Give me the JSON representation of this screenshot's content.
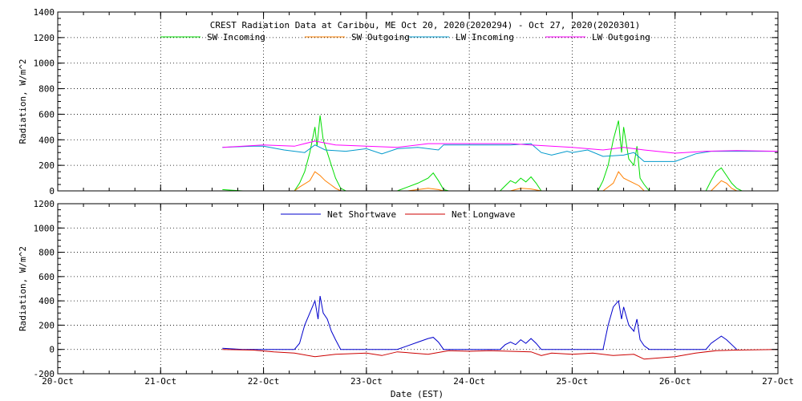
{
  "title": "CREST Radiation Data at Caribou, ME   Oct 20, 2020(2020294) - Oct 27, 2020(2020301)",
  "chart_data": [
    {
      "type": "line",
      "panel": "top",
      "ylabel": "Radiation, W/m^2",
      "ylim": [
        0,
        1400
      ],
      "yticks": [
        0,
        200,
        400,
        600,
        800,
        1000,
        1200,
        1400
      ],
      "xlim": [
        0,
        7
      ],
      "x_tick_labels": [
        "20-Oct",
        "21-Oct",
        "22-Oct",
        "23-Oct",
        "24-Oct",
        "25-Oct",
        "26-Oct",
        "27-Oct"
      ],
      "grid": true,
      "legend_position": "top",
      "series": [
        {
          "name": "SW Incoming",
          "color": "#00dd00",
          "points": [
            [
              1.6,
              10
            ],
            [
              1.7,
              5
            ],
            [
              1.8,
              0
            ],
            [
              2.3,
              0
            ],
            [
              2.35,
              60
            ],
            [
              2.4,
              150
            ],
            [
              2.45,
              300
            ],
            [
              2.5,
              500
            ],
            [
              2.52,
              350
            ],
            [
              2.55,
              590
            ],
            [
              2.58,
              400
            ],
            [
              2.62,
              300
            ],
            [
              2.66,
              200
            ],
            [
              2.7,
              100
            ],
            [
              2.75,
              20
            ],
            [
              2.8,
              0
            ],
            [
              3.3,
              0
            ],
            [
              3.4,
              30
            ],
            [
              3.5,
              60
            ],
            [
              3.6,
              100
            ],
            [
              3.65,
              140
            ],
            [
              3.7,
              80
            ],
            [
              3.75,
              10
            ],
            [
              3.8,
              0
            ],
            [
              4.3,
              0
            ],
            [
              4.35,
              40
            ],
            [
              4.4,
              80
            ],
            [
              4.45,
              60
            ],
            [
              4.5,
              100
            ],
            [
              4.55,
              70
            ],
            [
              4.6,
              110
            ],
            [
              4.65,
              60
            ],
            [
              4.7,
              0
            ],
            [
              5.25,
              0
            ],
            [
              5.3,
              80
            ],
            [
              5.35,
              200
            ],
            [
              5.4,
              400
            ],
            [
              5.45,
              550
            ],
            [
              5.48,
              300
            ],
            [
              5.5,
              500
            ],
            [
              5.55,
              250
            ],
            [
              5.6,
              200
            ],
            [
              5.63,
              350
            ],
            [
              5.66,
              100
            ],
            [
              5.7,
              50
            ],
            [
              5.75,
              0
            ],
            [
              6.3,
              0
            ],
            [
              6.35,
              80
            ],
            [
              6.4,
              150
            ],
            [
              6.45,
              180
            ],
            [
              6.5,
              120
            ],
            [
              6.55,
              60
            ],
            [
              6.6,
              20
            ],
            [
              6.65,
              0
            ]
          ]
        },
        {
          "name": "SW Outgoing",
          "color": "#ff8000",
          "points": [
            [
              2.3,
              0
            ],
            [
              2.35,
              30
            ],
            [
              2.45,
              80
            ],
            [
              2.5,
              150
            ],
            [
              2.55,
              120
            ],
            [
              2.6,
              80
            ],
            [
              2.65,
              50
            ],
            [
              2.7,
              20
            ],
            [
              2.75,
              0
            ],
            [
              3.4,
              0
            ],
            [
              3.5,
              10
            ],
            [
              3.6,
              20
            ],
            [
              3.7,
              10
            ],
            [
              3.75,
              0
            ],
            [
              4.4,
              0
            ],
            [
              4.5,
              20
            ],
            [
              4.6,
              15
            ],
            [
              4.7,
              0
            ],
            [
              5.3,
              0
            ],
            [
              5.4,
              60
            ],
            [
              5.45,
              150
            ],
            [
              5.5,
              100
            ],
            [
              5.55,
              80
            ],
            [
              5.6,
              60
            ],
            [
              5.65,
              40
            ],
            [
              5.7,
              0
            ],
            [
              6.35,
              0
            ],
            [
              6.45,
              80
            ],
            [
              6.5,
              60
            ],
            [
              6.55,
              20
            ],
            [
              6.6,
              0
            ]
          ]
        },
        {
          "name": "LW Incoming",
          "color": "#0099cc",
          "points": [
            [
              1.6,
              340
            ],
            [
              1.9,
              350
            ],
            [
              2.0,
              350
            ],
            [
              2.2,
              320
            ],
            [
              2.4,
              300
            ],
            [
              2.5,
              360
            ],
            [
              2.6,
              320
            ],
            [
              2.8,
              310
            ],
            [
              3.0,
              330
            ],
            [
              3.15,
              290
            ],
            [
              3.3,
              330
            ],
            [
              3.5,
              340
            ],
            [
              3.7,
              320
            ],
            [
              3.75,
              360
            ],
            [
              4.0,
              360
            ],
            [
              4.2,
              360
            ],
            [
              4.4,
              360
            ],
            [
              4.6,
              370
            ],
            [
              4.7,
              300
            ],
            [
              4.8,
              280
            ],
            [
              4.95,
              310
            ],
            [
              5.0,
              300
            ],
            [
              5.15,
              320
            ],
            [
              5.3,
              270
            ],
            [
              5.5,
              280
            ],
            [
              5.6,
              300
            ],
            [
              5.7,
              230
            ],
            [
              6.0,
              230
            ],
            [
              6.2,
              290
            ],
            [
              6.35,
              310
            ],
            [
              6.6,
              310
            ],
            [
              7.0,
              310
            ]
          ]
        },
        {
          "name": "LW Outgoing",
          "color": "#ff00ff",
          "points": [
            [
              1.6,
              340
            ],
            [
              2.0,
              360
            ],
            [
              2.3,
              350
            ],
            [
              2.5,
              390
            ],
            [
              2.7,
              360
            ],
            [
              3.0,
              350
            ],
            [
              3.3,
              340
            ],
            [
              3.6,
              370
            ],
            [
              4.0,
              370
            ],
            [
              4.4,
              370
            ],
            [
              4.6,
              360
            ],
            [
              5.0,
              340
            ],
            [
              5.3,
              320
            ],
            [
              5.5,
              340
            ],
            [
              5.7,
              320
            ],
            [
              6.0,
              295
            ],
            [
              6.3,
              310
            ],
            [
              6.6,
              315
            ],
            [
              7.0,
              310
            ]
          ]
        }
      ]
    },
    {
      "type": "line",
      "panel": "bottom",
      "ylabel": "Radiation, W/m^2",
      "xlabel": "Date (EST)",
      "ylim": [
        -200,
        1200
      ],
      "yticks": [
        -200,
        0,
        200,
        400,
        600,
        800,
        1000,
        1200
      ],
      "xlim": [
        0,
        7
      ],
      "x_tick_labels": [
        "20-Oct",
        "21-Oct",
        "22-Oct",
        "23-Oct",
        "24-Oct",
        "25-Oct",
        "26-Oct",
        "27-Oct"
      ],
      "grid": true,
      "legend_position": "top",
      "series": [
        {
          "name": "Net Shortwave",
          "color": "#0000cc",
          "points": [
            [
              1.6,
              10
            ],
            [
              1.8,
              0
            ],
            [
              2.3,
              0
            ],
            [
              2.35,
              50
            ],
            [
              2.4,
              200
            ],
            [
              2.45,
              300
            ],
            [
              2.5,
              400
            ],
            [
              2.53,
              250
            ],
            [
              2.55,
              440
            ],
            [
              2.58,
              300
            ],
            [
              2.62,
              250
            ],
            [
              2.66,
              150
            ],
            [
              2.7,
              80
            ],
            [
              2.75,
              0
            ],
            [
              3.3,
              0
            ],
            [
              3.4,
              30
            ],
            [
              3.5,
              60
            ],
            [
              3.6,
              90
            ],
            [
              3.65,
              100
            ],
            [
              3.7,
              60
            ],
            [
              3.75,
              0
            ],
            [
              4.3,
              0
            ],
            [
              4.35,
              40
            ],
            [
              4.4,
              60
            ],
            [
              4.45,
              40
            ],
            [
              4.5,
              80
            ],
            [
              4.55,
              50
            ],
            [
              4.6,
              90
            ],
            [
              4.65,
              50
            ],
            [
              4.7,
              0
            ],
            [
              5.3,
              0
            ],
            [
              5.35,
              200
            ],
            [
              5.4,
              350
            ],
            [
              5.45,
              400
            ],
            [
              5.48,
              250
            ],
            [
              5.5,
              350
            ],
            [
              5.55,
              200
            ],
            [
              5.6,
              150
            ],
            [
              5.63,
              250
            ],
            [
              5.66,
              80
            ],
            [
              5.7,
              30
            ],
            [
              5.75,
              0
            ],
            [
              6.3,
              0
            ],
            [
              6.35,
              50
            ],
            [
              6.4,
              80
            ],
            [
              6.45,
              110
            ],
            [
              6.5,
              80
            ],
            [
              6.55,
              40
            ],
            [
              6.6,
              0
            ]
          ]
        },
        {
          "name": "Net Longwave",
          "color": "#cc0000",
          "points": [
            [
              1.6,
              0
            ],
            [
              1.9,
              -5
            ],
            [
              2.1,
              -20
            ],
            [
              2.3,
              -30
            ],
            [
              2.5,
              -60
            ],
            [
              2.7,
              -40
            ],
            [
              3.0,
              -30
            ],
            [
              3.15,
              -50
            ],
            [
              3.3,
              -20
            ],
            [
              3.6,
              -40
            ],
            [
              3.8,
              -10
            ],
            [
              4.0,
              -15
            ],
            [
              4.2,
              -10
            ],
            [
              4.4,
              -15
            ],
            [
              4.6,
              -20
            ],
            [
              4.7,
              -50
            ],
            [
              4.8,
              -30
            ],
            [
              5.0,
              -40
            ],
            [
              5.2,
              -30
            ],
            [
              5.4,
              -50
            ],
            [
              5.6,
              -40
            ],
            [
              5.7,
              -80
            ],
            [
              6.0,
              -60
            ],
            [
              6.2,
              -30
            ],
            [
              6.4,
              -10
            ],
            [
              6.6,
              -5
            ],
            [
              7.0,
              0
            ]
          ]
        }
      ]
    }
  ]
}
